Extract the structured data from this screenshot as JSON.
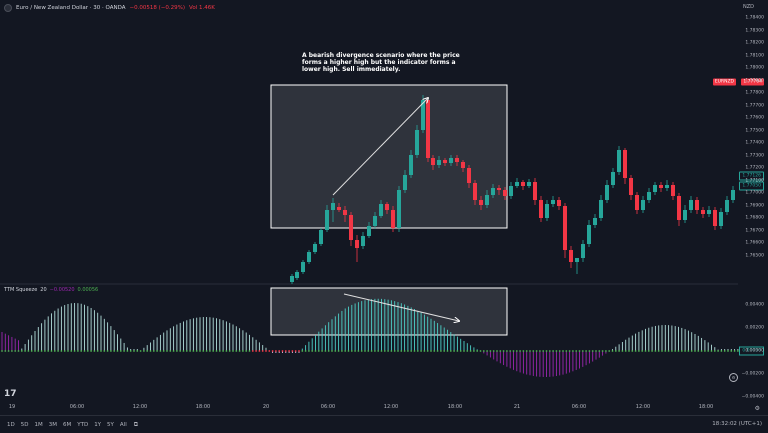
{
  "legend": {
    "symbol": "Euro / New Zealand Dollar · 30 · OANDA",
    "change": "−0.00518 (−0.29%)",
    "vol": "Vol 1.46K"
  },
  "currency_label": "NZD",
  "price_axis": {
    "ticks": [
      "1.78400",
      "1.78300",
      "1.78200",
      "1.78100",
      "1.78000",
      "1.77900",
      "1.77800",
      "1.77700",
      "1.77600",
      "1.77500",
      "1.77400",
      "1.77300",
      "1.77200",
      "1.77100",
      "1.77000",
      "1.76900",
      "1.76800",
      "1.76700",
      "1.76600",
      "1.76500"
    ],
    "symbol_badge": "EURNZD",
    "badge_price": "1.77764",
    "current_price": "1.77126",
    "current_price_b": "1.77050"
  },
  "annotation": "A bearish divergence scenario where the price forms a higher high but the indicator forms a lower high. Sell immediately.",
  "indicator": {
    "name": "TTM Squeeze",
    "length": "20",
    "value_neg": "−0.00520",
    "value_pos": "0.00056",
    "ticks": [
      "0.00400",
      "0.00200",
      "0.00000",
      "−0.00200",
      "−0.00400"
    ],
    "current": "0.00056"
  },
  "time_axis": [
    "19",
    "06:00",
    "12:00",
    "18:00",
    "20",
    "06:00",
    "12:00",
    "18:00",
    "21",
    "06:00",
    "12:00",
    "18:00"
  ],
  "timeframes": [
    "1D",
    "5D",
    "1M",
    "3M",
    "6M",
    "YTD",
    "1Y",
    "5Y",
    "All"
  ],
  "clock": "18:32:02 (UTC+1)",
  "colors": {
    "bull": "#26a69a",
    "bear": "#f23645",
    "bg": "#131722",
    "squeeze": "#4caf50",
    "neg_osc": "#9c27b0"
  }
}
